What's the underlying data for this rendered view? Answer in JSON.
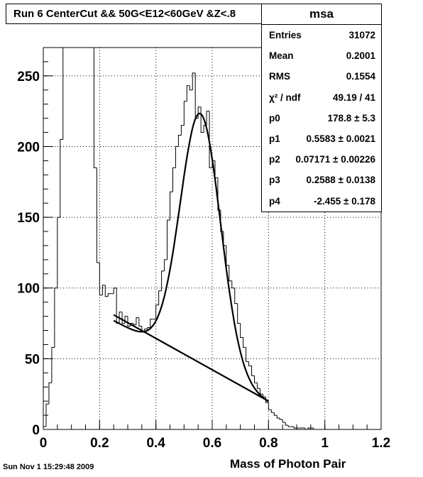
{
  "title": "Run 6 CenterCut && 50G<E12<60GeV &Z<.8",
  "stats": {
    "name": "msa",
    "rows": [
      {
        "label": "Entries",
        "value": "31072"
      },
      {
        "label": "Mean",
        "value": "0.2001"
      },
      {
        "label": "RMS",
        "value": "0.1554"
      },
      {
        "label": "χ² / ndf",
        "value": "49.19 / 41"
      },
      {
        "label": "p0",
        "value": "178.8 ± 5.3"
      },
      {
        "label": "p1",
        "value": "0.5583 ± 0.0021"
      },
      {
        "label": "p2",
        "value": "0.07171 ± 0.00226"
      },
      {
        "label": "p3",
        "value": "0.2588 ± 0.0138"
      },
      {
        "label": "p4",
        "value": "-2.455 ± 0.178"
      }
    ]
  },
  "footer": {
    "timestamp": "Sun Nov  1 15:29:48 2009",
    "xlabel": "Mass of Photon Pair"
  },
  "chart_data": {
    "type": "bar",
    "title": "Run 6 CenterCut && 50G<E12<60GeV &Z<.8",
    "xlabel": "Mass of Photon Pair",
    "ylabel": "",
    "xlim": [
      0,
      1.2
    ],
    "ylim": [
      0,
      270
    ],
    "grid": true,
    "bin_width": 0.01,
    "x_ticks": [
      0,
      0.2,
      0.4,
      0.6,
      0.8,
      1,
      1.2
    ],
    "x_tick_labels": [
      "0",
      "0.2",
      "0.4",
      "0.6",
      "0.8",
      "1",
      "1.2"
    ],
    "y_ticks": [
      0,
      50,
      100,
      150,
      200,
      250
    ],
    "y_tick_labels": [
      "0",
      "50",
      "100",
      "150",
      "200",
      "250"
    ],
    "bins_x_start": 0.0,
    "counts": [
      2,
      18,
      33,
      58,
      100,
      150,
      205,
      270,
      270,
      270,
      270,
      270,
      270,
      270,
      270,
      270,
      270,
      270,
      185,
      118,
      95,
      102,
      94,
      96,
      96,
      100,
      75,
      83,
      75,
      80,
      73,
      75,
      74,
      79,
      73,
      69,
      71,
      72,
      78,
      78,
      88,
      98,
      112,
      120,
      148,
      168,
      185,
      200,
      208,
      215,
      232,
      243,
      240,
      252,
      220,
      228,
      210,
      215,
      225,
      185,
      190,
      178,
      155,
      140,
      130,
      116,
      105,
      100,
      89,
      75,
      65,
      58,
      48,
      45,
      38,
      33,
      29,
      25,
      23,
      19,
      14,
      12,
      10,
      8,
      7,
      5,
      3,
      2,
      2,
      1,
      1,
      1,
      1,
      0,
      1,
      1,
      0,
      0,
      0,
      0,
      0,
      0,
      0,
      0,
      0,
      0,
      0,
      0,
      0,
      0,
      0,
      0,
      0,
      0,
      0,
      0,
      0,
      0,
      0,
      0
    ],
    "fit": {
      "p0": 178.8,
      "p1": 0.5583,
      "p2": 0.07171,
      "p3": 0.2588,
      "p4": -2.455,
      "range": [
        0.25,
        0.8
      ]
    },
    "background_line": {
      "x": [
        0.25,
        0.8
      ],
      "y": [
        81,
        20
      ]
    }
  }
}
